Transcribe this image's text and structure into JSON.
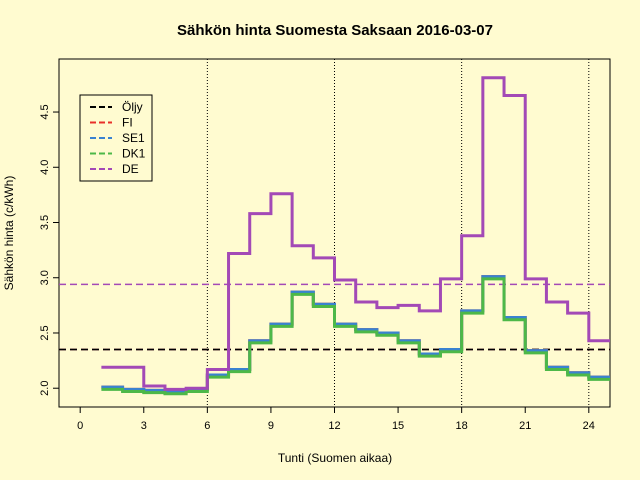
{
  "chart_data": {
    "type": "line",
    "title": "Sähkön hinta Suomesta Saksaan 2016-03-07",
    "xlabel": "Tunti (Suomen aikaa)",
    "ylabel": "Sähkön hinta (c/kWh)",
    "xlim": [
      -1,
      25
    ],
    "ylim": [
      1.83,
      4.98
    ],
    "xticks": [
      0,
      3,
      6,
      9,
      12,
      15,
      18,
      21,
      24
    ],
    "yticks": [
      2.0,
      2.5,
      3.0,
      3.5,
      4.0,
      4.5
    ],
    "ytick_labels": [
      "2.0",
      "2.5",
      "3.0",
      "3.5",
      "4.0",
      "4.5"
    ],
    "vlines": [
      6,
      12,
      18,
      24
    ],
    "grid": false,
    "legend_position": "top-left",
    "series": [
      {
        "name": "Öljy",
        "color": "#000000",
        "style": "dashed",
        "kind": "hline",
        "value": 2.35
      },
      {
        "name": "FI",
        "color": "#E8302A",
        "style": "dashed",
        "kind": "hline",
        "value": 2.35
      },
      {
        "name": "SE1",
        "color": "#3A82D0",
        "style": "dashed",
        "kind": "hline",
        "value": 2.35
      },
      {
        "name": "DK1",
        "color": "#4DB848",
        "style": "dashed",
        "kind": "hline",
        "value": 2.35
      },
      {
        "name": "DE",
        "color": "#A349B6",
        "style": "dashed",
        "kind": "hline",
        "value": 2.94
      }
    ],
    "step_series": [
      {
        "name": "FI",
        "color": "#E8302A",
        "x": [
          1,
          2,
          3,
          4,
          5,
          6,
          7,
          8,
          9,
          10,
          11,
          12,
          13,
          14,
          15,
          16,
          17,
          18,
          19,
          20,
          21,
          22,
          23,
          24,
          25
        ],
        "y": [
          2.01,
          1.99,
          1.98,
          1.97,
          1.99,
          2.12,
          2.17,
          2.43,
          2.58,
          2.87,
          2.76,
          2.58,
          2.53,
          2.5,
          2.43,
          2.31,
          2.35,
          2.7,
          3.01,
          2.64,
          2.34,
          2.19,
          2.14,
          2.1,
          2.1
        ]
      },
      {
        "name": "SE1",
        "color": "#3A82D0",
        "x": [
          1,
          2,
          3,
          4,
          5,
          6,
          7,
          8,
          9,
          10,
          11,
          12,
          13,
          14,
          15,
          16,
          17,
          18,
          19,
          20,
          21,
          22,
          23,
          24,
          25
        ],
        "y": [
          2.01,
          1.99,
          1.98,
          1.97,
          1.99,
          2.12,
          2.17,
          2.43,
          2.58,
          2.87,
          2.76,
          2.58,
          2.53,
          2.5,
          2.43,
          2.31,
          2.35,
          2.7,
          3.01,
          2.64,
          2.34,
          2.19,
          2.14,
          2.1,
          2.1
        ]
      },
      {
        "name": "DK1",
        "color": "#4DB848",
        "x": [
          1,
          2,
          3,
          4,
          5,
          6,
          7,
          8,
          9,
          10,
          11,
          12,
          13,
          14,
          15,
          16,
          17,
          18,
          19,
          20,
          21,
          22,
          23,
          24,
          25
        ],
        "y": [
          1.99,
          1.97,
          1.96,
          1.95,
          1.97,
          2.1,
          2.15,
          2.41,
          2.56,
          2.85,
          2.74,
          2.56,
          2.51,
          2.48,
          2.41,
          2.29,
          2.33,
          2.68,
          2.99,
          2.62,
          2.32,
          2.17,
          2.12,
          2.08,
          2.08
        ]
      },
      {
        "name": "DE",
        "color": "#A349B6",
        "x": [
          1,
          2,
          3,
          4,
          5,
          6,
          7,
          8,
          9,
          10,
          11,
          12,
          13,
          14,
          15,
          16,
          17,
          18,
          19,
          20,
          21,
          22,
          23,
          24,
          25
        ],
        "y": [
          2.19,
          2.19,
          2.02,
          1.99,
          2.0,
          2.17,
          3.22,
          3.58,
          3.76,
          3.29,
          3.18,
          2.98,
          2.78,
          2.73,
          2.75,
          2.7,
          2.99,
          3.38,
          4.81,
          4.65,
          2.99,
          2.78,
          2.68,
          2.43,
          2.43
        ]
      }
    ]
  }
}
